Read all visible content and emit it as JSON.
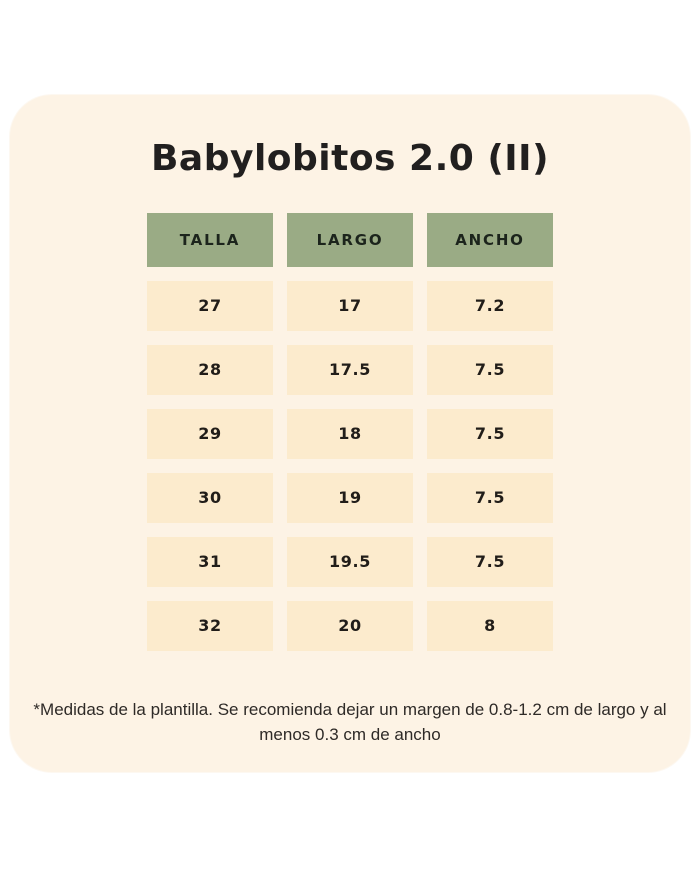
{
  "title": "Babylobitos 2.0 (II)",
  "table": {
    "headers": [
      "TALLA",
      "LARGO",
      "ANCHO"
    ],
    "rows": [
      [
        "27",
        "17",
        "7.2"
      ],
      [
        "28",
        "17.5",
        "7.5"
      ],
      [
        "29",
        "18",
        "7.5"
      ],
      [
        "30",
        "19",
        "7.5"
      ],
      [
        "31",
        "19.5",
        "7.5"
      ],
      [
        "32",
        "20",
        "8"
      ]
    ]
  },
  "footnote": "*Medidas de la plantilla. Se recomienda dejar un margen de 0.8-1.2 cm de largo y al menos 0.3 cm de ancho",
  "colors": {
    "page_bg": "#ffffff",
    "card_bg": "#fdf3e5",
    "header_bg": "#9aab85",
    "cell_bg": "#fcebcd",
    "title_text": "#211f1f"
  },
  "chart_data": {
    "type": "table",
    "title": "Babylobitos 2.0 (II)",
    "columns": [
      "TALLA",
      "LARGO",
      "ANCHO"
    ],
    "rows": [
      [
        27,
        17,
        7.2
      ],
      [
        28,
        17.5,
        7.5
      ],
      [
        29,
        18,
        7.5
      ],
      [
        30,
        19,
        7.5
      ],
      [
        31,
        19.5,
        7.5
      ],
      [
        32,
        20,
        8
      ]
    ],
    "footnote": "*Medidas de la plantilla. Se recomienda dejar un margen de 0.8-1.2 cm de largo y al menos 0.3 cm de ancho",
    "layout": {
      "header_fill": "#9aab85",
      "row_fill": "#fcebcd",
      "grid": "cell-gaps"
    }
  }
}
